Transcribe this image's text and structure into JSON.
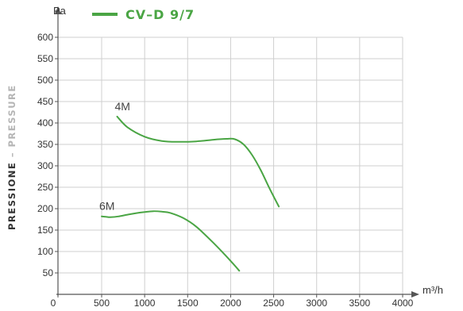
{
  "chart_data": {
    "type": "line",
    "y_unit": "Pa",
    "x_unit": "m³/h",
    "side_label": {
      "part1": "PRESSIONE",
      "separator": " – ",
      "part2": "PRESSURE"
    },
    "legend": [
      {
        "label": "CV–D 9/7",
        "color": "#4aa544"
      }
    ],
    "x_ticks": [
      0,
      500,
      1000,
      1500,
      2000,
      2500,
      3000,
      3500,
      4000
    ],
    "y_ticks": [
      50,
      100,
      150,
      200,
      250,
      300,
      350,
      400,
      450,
      500,
      550,
      600
    ],
    "xlim": [
      0,
      4000
    ],
    "ylim": [
      0,
      600
    ],
    "grid": true,
    "series_color": "#4aa544",
    "series": [
      {
        "curve_label": "4M",
        "x": [
          680,
          800,
          1000,
          1200,
          1400,
          1600,
          1800,
          1950,
          2050,
          2150,
          2250,
          2350,
          2450,
          2560
        ],
        "y": [
          415,
          390,
          368,
          358,
          356,
          357,
          361,
          363,
          362,
          350,
          325,
          290,
          248,
          205
        ]
      },
      {
        "curve_label": "6M",
        "x": [
          500,
          550,
          600,
          700,
          800,
          950,
          1100,
          1200,
          1300,
          1450,
          1600,
          1800,
          2000,
          2100
        ],
        "y": [
          182,
          181,
          180,
          182,
          186,
          191,
          194,
          193,
          190,
          178,
          158,
          120,
          78,
          55
        ]
      }
    ]
  }
}
